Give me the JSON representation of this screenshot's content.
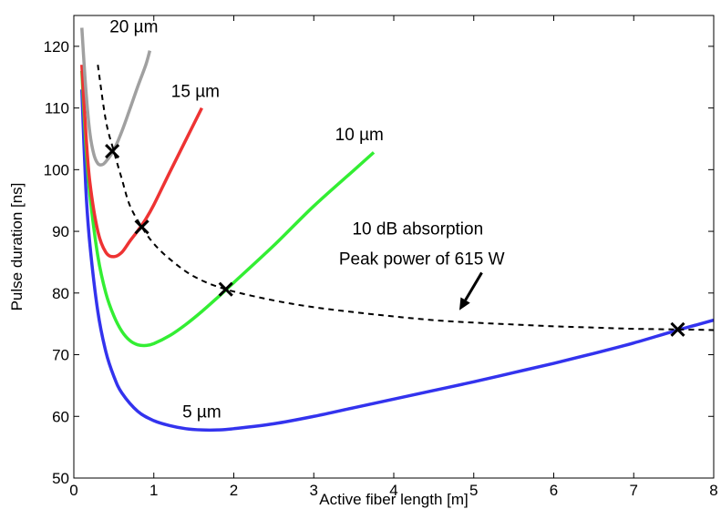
{
  "chart_data": {
    "type": "line",
    "xlabel": "Active fiber length [m]",
    "ylabel": "Pulse duration [ns]",
    "xlim": [
      0,
      8
    ],
    "ylim": [
      50,
      125
    ],
    "xticks": [
      0,
      1,
      2,
      3,
      4,
      5,
      6,
      7,
      8
    ],
    "yticks": [
      50,
      60,
      70,
      80,
      90,
      100,
      110,
      120
    ],
    "grid": false,
    "series": [
      {
        "name": "5 µm",
        "color": "#3333ee",
        "points": [
          [
            0.1,
            113
          ],
          [
            0.15,
            97
          ],
          [
            0.2,
            88
          ],
          [
            0.3,
            77
          ],
          [
            0.4,
            70.5
          ],
          [
            0.5,
            66.5
          ],
          [
            0.6,
            63.8
          ],
          [
            0.8,
            60.8
          ],
          [
            1.0,
            59.3
          ],
          [
            1.2,
            58.5
          ],
          [
            1.4,
            58.0
          ],
          [
            1.6,
            57.8
          ],
          [
            1.8,
            57.8
          ],
          [
            2.0,
            58.0
          ],
          [
            2.5,
            58.8
          ],
          [
            3.0,
            60.0
          ],
          [
            3.5,
            61.4
          ],
          [
            4.0,
            62.8
          ],
          [
            4.5,
            64.2
          ],
          [
            5.0,
            65.6
          ],
          [
            5.5,
            67.1
          ],
          [
            6.0,
            68.6
          ],
          [
            6.5,
            70.2
          ],
          [
            7.0,
            71.9
          ],
          [
            7.5,
            73.8
          ],
          [
            8.0,
            75.6
          ]
        ]
      },
      {
        "name": "10 µm",
        "color": "#33ee33",
        "points": [
          [
            0.1,
            116
          ],
          [
            0.15,
            104
          ],
          [
            0.2,
            96
          ],
          [
            0.3,
            86
          ],
          [
            0.4,
            80
          ],
          [
            0.5,
            76.3
          ],
          [
            0.6,
            73.8
          ],
          [
            0.7,
            72.3
          ],
          [
            0.8,
            71.6
          ],
          [
            0.9,
            71.5
          ],
          [
            1.0,
            71.8
          ],
          [
            1.2,
            73.1
          ],
          [
            1.4,
            74.9
          ],
          [
            1.6,
            77.0
          ],
          [
            1.8,
            79.3
          ],
          [
            1.9,
            80.5
          ],
          [
            2.0,
            81.7
          ],
          [
            2.5,
            87.7
          ],
          [
            3.0,
            94.1
          ],
          [
            3.5,
            99.9
          ],
          [
            3.75,
            102.8
          ]
        ]
      },
      {
        "name": "15 µm",
        "color": "#ee3333",
        "points": [
          [
            0.1,
            117
          ],
          [
            0.15,
            106
          ],
          [
            0.2,
            98
          ],
          [
            0.3,
            90
          ],
          [
            0.4,
            86.6
          ],
          [
            0.5,
            85.9
          ],
          [
            0.6,
            86.6
          ],
          [
            0.7,
            88.4
          ],
          [
            0.8,
            90.1
          ],
          [
            0.9,
            92.0
          ],
          [
            1.0,
            94.3
          ],
          [
            1.2,
            99.6
          ],
          [
            1.4,
            104.8
          ],
          [
            1.6,
            110.0
          ]
        ]
      },
      {
        "name": "20 µm",
        "color": "#a0a0a0",
        "points": [
          [
            0.1,
            123
          ],
          [
            0.15,
            113
          ],
          [
            0.2,
            106
          ],
          [
            0.25,
            102.5
          ],
          [
            0.3,
            101.0
          ],
          [
            0.35,
            100.8
          ],
          [
            0.4,
            101.3
          ],
          [
            0.5,
            103.2
          ],
          [
            0.6,
            106.2
          ],
          [
            0.7,
            109.8
          ],
          [
            0.8,
            113.5
          ],
          [
            0.9,
            117.0
          ],
          [
            0.95,
            119.3
          ]
        ]
      },
      {
        "name": "10 dB absorption / Peak power of 615 W",
        "color": "#000000",
        "dashed": true,
        "points": [
          [
            0.3,
            117
          ],
          [
            0.4,
            108
          ],
          [
            0.5,
            103
          ],
          [
            0.6,
            98.5
          ],
          [
            0.7,
            94.2
          ],
          [
            0.85,
            90.7
          ],
          [
            1.0,
            88.0
          ],
          [
            1.2,
            85.5
          ],
          [
            1.5,
            82.7
          ],
          [
            1.9,
            80.6
          ],
          [
            2.5,
            78.8
          ],
          [
            3.0,
            77.7
          ],
          [
            3.5,
            76.9
          ],
          [
            4.0,
            76.2
          ],
          [
            4.5,
            75.6
          ],
          [
            5.0,
            75.2
          ],
          [
            5.5,
            74.9
          ],
          [
            6.0,
            74.6
          ],
          [
            6.5,
            74.4
          ],
          [
            7.0,
            74.2
          ],
          [
            7.55,
            74.1
          ],
          [
            8.0,
            74.0
          ]
        ]
      }
    ],
    "markers": [
      {
        "x": 0.48,
        "y": 103
      },
      {
        "x": 0.85,
        "y": 90.7
      },
      {
        "x": 1.9,
        "y": 80.6
      },
      {
        "x": 7.55,
        "y": 74.1
      }
    ],
    "annotations": [
      {
        "text": "20 µm",
        "x": 0.75,
        "y": 122.3
      },
      {
        "text": "15 µm",
        "x": 1.52,
        "y": 111.8
      },
      {
        "text": "10 µm",
        "x": 3.57,
        "y": 104.8
      },
      {
        "text": "5 µm",
        "x": 1.6,
        "y": 59.8
      },
      {
        "text": "10 dB absorption",
        "x": 4.3,
        "y": 89.5
      },
      {
        "text": "Peak power of 615 W",
        "x": 4.35,
        "y": 84.6
      }
    ],
    "arrow": {
      "from": [
        5.1,
        83.3
      ],
      "to": [
        4.82,
        77.2
      ]
    }
  }
}
